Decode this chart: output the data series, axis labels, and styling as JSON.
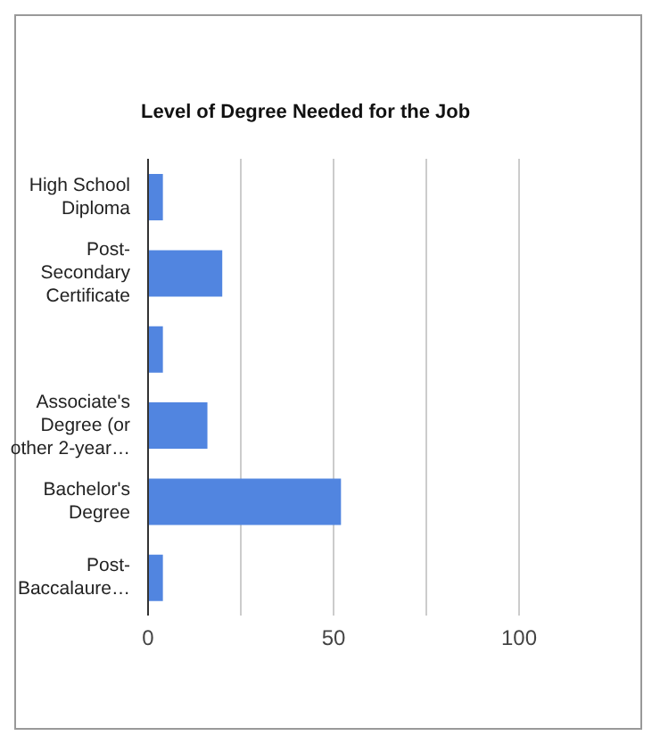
{
  "chart_data": {
    "type": "bar",
    "orientation": "horizontal",
    "title": "Level of Degree Needed for the Job",
    "categories": [
      "High School Diploma",
      "Post-Secondary Certificate",
      null,
      "Associate's Degree (or other 2-year…",
      "Bachelor's Degree",
      "Post-Baccalaure…"
    ],
    "values": [
      4,
      20,
      4,
      16,
      52,
      4
    ],
    "color": "#5185e0",
    "xlim": [
      0,
      100
    ],
    "xticks": [
      0,
      {
        "value": 25,
        "label": null
      },
      50,
      {
        "value": 75,
        "label": null
      },
      100
    ],
    "grid": "x"
  }
}
